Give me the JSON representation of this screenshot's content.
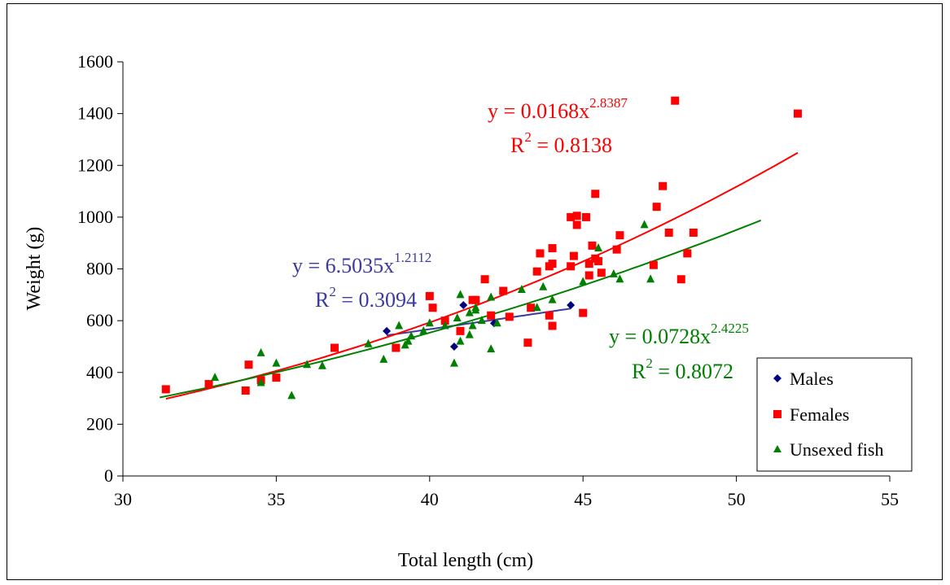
{
  "chart_data": {
    "type": "scatter",
    "xlabel": "Total length (cm)",
    "ylabel": "Weight (g)",
    "xlim": [
      30,
      55
    ],
    "ylim": [
      0,
      1600
    ],
    "xticks": [
      30,
      35,
      40,
      45,
      50,
      55
    ],
    "yticks": [
      0,
      200,
      400,
      600,
      800,
      1000,
      1200,
      1400,
      1600
    ],
    "grid": false,
    "legend_position": "bottom-right",
    "series": [
      {
        "name": "Males",
        "marker": "diamond",
        "color": "#000080",
        "points": [
          [
            38.6,
            560
          ],
          [
            41.1,
            660
          ],
          [
            40.8,
            500
          ],
          [
            42.1,
            590
          ],
          [
            44.6,
            660
          ]
        ],
        "trend": {
          "type": "power",
          "a": 6.5035,
          "b": 1.2112,
          "x_range": [
            38.6,
            44.6
          ],
          "color": "#3a3aa0"
        },
        "equation": {
          "prefix": "y = 6.5035x",
          "exponent": "1.2112",
          "r2_label": "R",
          "r2_exp": "2",
          "r2_value": " = 0.3094"
        }
      },
      {
        "name": "Females",
        "marker": "square",
        "color": "#ff0000",
        "points": [
          [
            31.4,
            335
          ],
          [
            32.8,
            355
          ],
          [
            34.0,
            330
          ],
          [
            34.1,
            430
          ],
          [
            34.5,
            370
          ],
          [
            35.0,
            380
          ],
          [
            36.9,
            495
          ],
          [
            38.9,
            495
          ],
          [
            40.0,
            695
          ],
          [
            40.1,
            650
          ],
          [
            40.5,
            600
          ],
          [
            41.0,
            560
          ],
          [
            41.4,
            680
          ],
          [
            41.5,
            680
          ],
          [
            41.8,
            760
          ],
          [
            42.0,
            620
          ],
          [
            42.4,
            715
          ],
          [
            42.6,
            615
          ],
          [
            43.2,
            515
          ],
          [
            43.3,
            650
          ],
          [
            43.5,
            790
          ],
          [
            43.6,
            860
          ],
          [
            43.9,
            620
          ],
          [
            43.9,
            810
          ],
          [
            44.0,
            820
          ],
          [
            44.0,
            880
          ],
          [
            44.0,
            580
          ],
          [
            44.6,
            810
          ],
          [
            44.6,
            1000
          ],
          [
            44.7,
            850
          ],
          [
            44.8,
            970
          ],
          [
            44.8,
            1005
          ],
          [
            45.0,
            630
          ],
          [
            45.1,
            1000
          ],
          [
            45.2,
            775
          ],
          [
            45.2,
            820
          ],
          [
            45.3,
            890
          ],
          [
            45.4,
            840
          ],
          [
            45.4,
            1090
          ],
          [
            45.5,
            830
          ],
          [
            45.6,
            785
          ],
          [
            46.1,
            875
          ],
          [
            46.2,
            930
          ],
          [
            47.3,
            815
          ],
          [
            47.4,
            1040
          ],
          [
            47.6,
            1120
          ],
          [
            47.8,
            940
          ],
          [
            48.0,
            1450
          ],
          [
            48.2,
            760
          ],
          [
            48.4,
            860
          ],
          [
            48.6,
            940
          ],
          [
            52.0,
            1400
          ]
        ],
        "trend": {
          "type": "power",
          "a": 0.0168,
          "b": 2.8387,
          "x_range": [
            31.4,
            52.0
          ],
          "color": "#ff0000"
        },
        "equation": {
          "prefix": "y = 0.0168x",
          "exponent": "2.8387",
          "r2_label": "R",
          "r2_exp": "2",
          "r2_value": " = 0.8138"
        }
      },
      {
        "name": "Unsexed fish",
        "marker": "triangle",
        "color": "#008000",
        "points": [
          [
            33.0,
            380
          ],
          [
            34.5,
            360
          ],
          [
            34.5,
            475
          ],
          [
            35.0,
            435
          ],
          [
            35.5,
            310
          ],
          [
            36.0,
            430
          ],
          [
            36.5,
            425
          ],
          [
            38.0,
            510
          ],
          [
            38.5,
            450
          ],
          [
            39.0,
            580
          ],
          [
            39.2,
            505
          ],
          [
            39.3,
            520
          ],
          [
            39.4,
            540
          ],
          [
            39.8,
            560
          ],
          [
            40.0,
            590
          ],
          [
            40.5,
            580
          ],
          [
            40.8,
            435
          ],
          [
            40.9,
            610
          ],
          [
            41.0,
            700
          ],
          [
            41.0,
            520
          ],
          [
            41.3,
            545
          ],
          [
            41.3,
            630
          ],
          [
            41.4,
            580
          ],
          [
            41.5,
            650
          ],
          [
            41.5,
            640
          ],
          [
            41.7,
            600
          ],
          [
            42.0,
            490
          ],
          [
            42.0,
            690
          ],
          [
            42.2,
            590
          ],
          [
            43.0,
            720
          ],
          [
            43.5,
            650
          ],
          [
            43.7,
            730
          ],
          [
            44.0,
            680
          ],
          [
            45.0,
            750
          ],
          [
            45.5,
            880
          ],
          [
            46.0,
            780
          ],
          [
            46.2,
            760
          ],
          [
            47.0,
            970
          ],
          [
            47.2,
            760
          ]
        ],
        "trend": {
          "type": "power",
          "a": 0.0728,
          "b": 2.4225,
          "x_range": [
            31.2,
            50.8
          ],
          "color": "#008000"
        },
        "equation": {
          "prefix": "y = 0.0728x",
          "exponent": "2.4225",
          "r2_label": "R",
          "r2_exp": "2",
          "r2_value": " = 0.8072"
        }
      }
    ]
  }
}
